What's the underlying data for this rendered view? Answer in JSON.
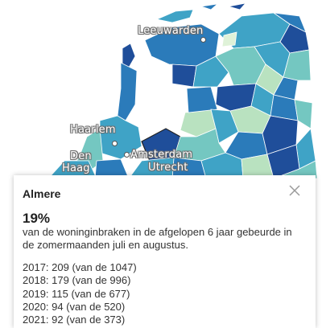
{
  "map": {
    "cities": {
      "leeuwarden": "Leeuwarden",
      "haarlem": "Haarlem",
      "den": "Den",
      "haag": "Haag",
      "amsterdam": "Amsterdam",
      "utrecht": "Utrecht"
    },
    "colors": {
      "dark": "#1f4e9a",
      "mid_dark": "#2b7bba",
      "mid": "#3fa3c6",
      "light": "#74c7c1",
      "pale": "#b9e2c0",
      "lightest": "#dff2d8"
    }
  },
  "panel": {
    "title": "Almere",
    "percentage": "19%",
    "description": "van de woninginbraken in de afgelopen 6 jaar gebeurde in de zomermaanden juli en augustus.",
    "stats": [
      "2017: 209 (van de 1047)",
      "2018: 179 (van de 996)",
      "2019: 115 (van de 677)",
      "2020: 94 (van de 520)",
      "2021: 92 (van de 373)"
    ],
    "close_icon": "close-icon"
  }
}
